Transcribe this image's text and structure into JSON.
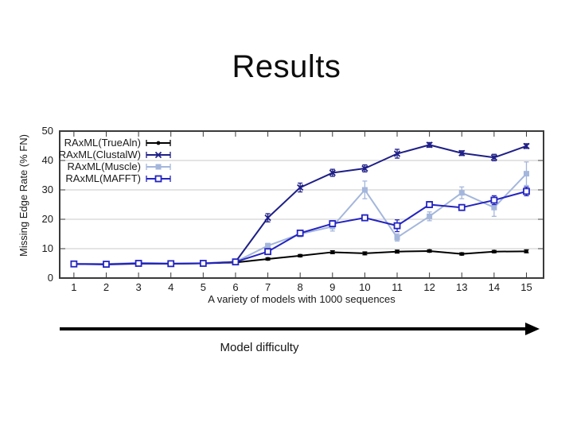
{
  "slide": {
    "title": "Results",
    "background": "#ffffff"
  },
  "arrow": {
    "label": "Model difficulty",
    "color": "#000000"
  },
  "chart_data": {
    "type": "line",
    "title": "",
    "xlabel": "A variety of models with 1000 sequences",
    "ylabel": "Missing Edge Rate (% FN)",
    "x": [
      1,
      2,
      3,
      4,
      5,
      6,
      7,
      8,
      9,
      10,
      11,
      12,
      13,
      14,
      15
    ],
    "xticks": [
      1,
      2,
      3,
      4,
      5,
      6,
      7,
      8,
      9,
      10,
      11,
      12,
      13,
      14,
      15
    ],
    "yticks": [
      0,
      10,
      20,
      30,
      40,
      50
    ],
    "xlim": [
      0.56,
      15.53
    ],
    "ylim": [
      0,
      50
    ],
    "grid": true,
    "legend_position": "top-left-inside",
    "border_color": "#3a3a3a",
    "grid_color": "#c9c9c9",
    "text_color": "#1a1a1a",
    "series": [
      {
        "name": "RAxML(TrueAln)",
        "color": "#000000",
        "marker": "dot",
        "values": [
          4.8,
          4.7,
          5.0,
          4.9,
          5.0,
          5.3,
          6.5,
          7.6,
          8.8,
          8.4,
          9.0,
          9.2,
          8.2,
          9.0,
          9.1
        ],
        "errors": [
          0.3,
          0.3,
          0.3,
          0.3,
          0.3,
          0.3,
          0.4,
          0.4,
          0.5,
          0.5,
          0.5,
          0.4,
          0.4,
          0.4,
          0.5
        ]
      },
      {
        "name": "RAxML(ClustalW)",
        "color": "#1f1f87",
        "marker": "x",
        "values": [
          4.8,
          4.6,
          4.9,
          4.9,
          5.0,
          5.5,
          20.5,
          30.8,
          35.8,
          37.3,
          42.3,
          45.3,
          42.5,
          41.0,
          44.9
        ],
        "errors": [
          0.3,
          0.3,
          0.3,
          0.3,
          0.3,
          0.3,
          1.4,
          1.5,
          1.2,
          1.2,
          1.5,
          0.8,
          0.8,
          1.1,
          0.8
        ]
      },
      {
        "name": "RAxML(Muscle)",
        "color": "#a4b6dc",
        "marker": "square-filled",
        "values": [
          4.9,
          4.8,
          5.2,
          5.0,
          5.1,
          5.5,
          11.0,
          15.0,
          17.5,
          30.0,
          13.8,
          21.0,
          29.0,
          24.0,
          35.5
        ],
        "errors": [
          0.3,
          0.3,
          0.3,
          0.3,
          0.3,
          0.3,
          0.8,
          1.0,
          1.5,
          3.0,
          1.2,
          1.5,
          2.0,
          3.0,
          4.0
        ]
      },
      {
        "name": "RAxML(MAFFT)",
        "color": "#2424c0",
        "marker": "square-open",
        "values": [
          4.8,
          4.7,
          5.0,
          4.9,
          5.0,
          5.5,
          9.0,
          15.3,
          18.5,
          20.5,
          17.8,
          25.0,
          24.0,
          26.5,
          29.5
        ],
        "errors": [
          0.3,
          0.3,
          0.3,
          0.3,
          0.3,
          0.3,
          0.8,
          1.0,
          1.0,
          1.0,
          2.0,
          1.0,
          1.0,
          1.5,
          1.5
        ]
      }
    ]
  }
}
